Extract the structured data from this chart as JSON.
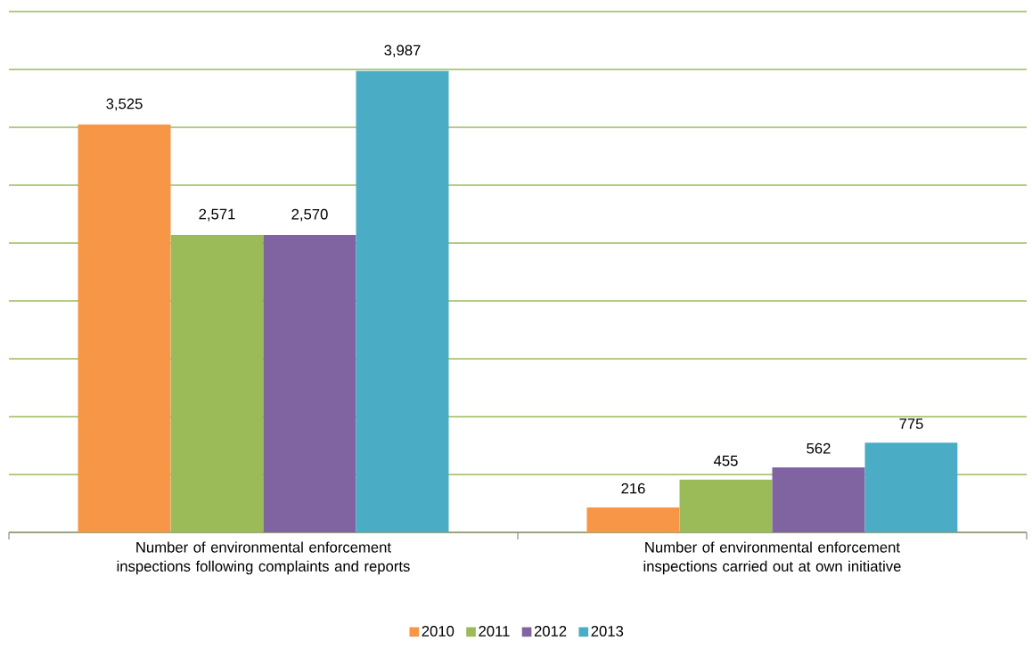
{
  "chart_data": {
    "type": "bar",
    "categories": [
      "Number of environmental enforcement inspections following complaints and reports",
      "Number of environmental enforcement inspections carried out at own initiative"
    ],
    "series": [
      {
        "name": "2010",
        "color": "#f79646",
        "values": [
          3525,
          216
        ],
        "value_labels": [
          "3,525",
          "216"
        ]
      },
      {
        "name": "2011",
        "color": "#9bbb59",
        "values": [
          2571,
          455
        ],
        "value_labels": [
          "2,571",
          "455"
        ]
      },
      {
        "name": "2012",
        "color": "#8064a2",
        "values": [
          2570,
          562
        ],
        "value_labels": [
          "2,570",
          "562"
        ]
      },
      {
        "name": "2013",
        "color": "#4bacc6",
        "values": [
          3987,
          775
        ],
        "value_labels": [
          "3,987",
          "775"
        ]
      }
    ],
    "ylim": [
      0,
      4500
    ],
    "yticks": [
      {
        "value": 0,
        "label": null
      },
      {
        "value": 500,
        "label": null
      },
      {
        "value": 1000,
        "label": null
      },
      {
        "value": 1500,
        "label": null
      },
      {
        "value": 2000,
        "label": null
      },
      {
        "value": 2500,
        "label": null
      },
      {
        "value": 3000,
        "label": null
      },
      {
        "value": 3500,
        "label": null
      },
      {
        "value": 4000,
        "label": null
      },
      {
        "value": 4500,
        "label": null
      }
    ],
    "grid": "y",
    "legend": "bottom",
    "tick_labels": "x"
  }
}
